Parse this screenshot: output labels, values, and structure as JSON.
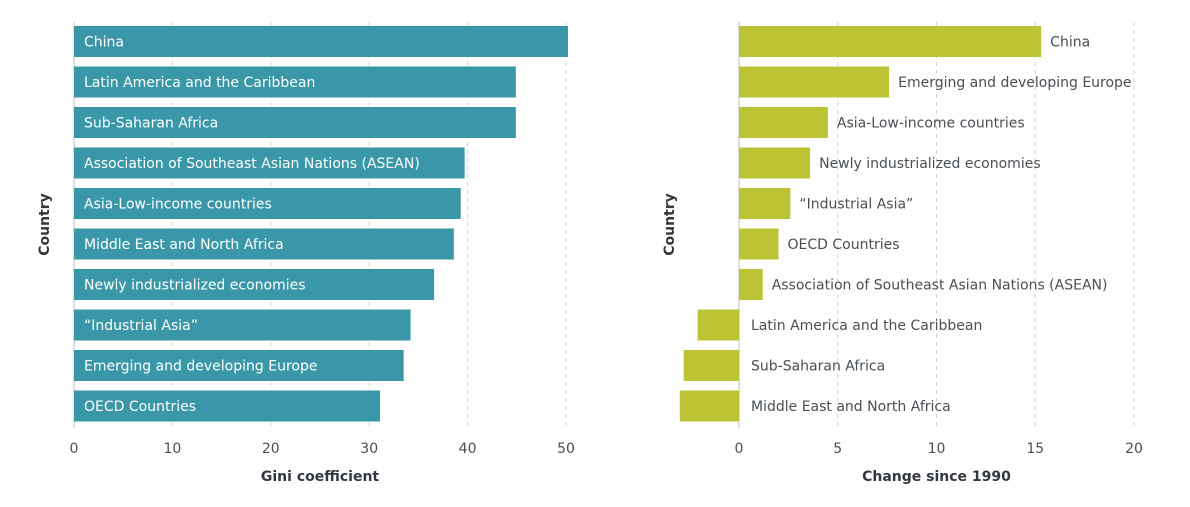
{
  "chart_data": [
    {
      "type": "bar",
      "orientation": "horizontal",
      "categories": [
        "China",
        "Latin America and the Caribbean",
        "Sub-Saharan Africa",
        "Association of Southeast Asian Nations (ASEAN)",
        "Asia-Low-income countries",
        "Middle East and North Africa",
        "Newly industrialized economies",
        "“Industrial Asia”",
        "Emerging and developing Europe",
        "OECD Countries"
      ],
      "values": [
        50.2,
        44.9,
        44.9,
        39.7,
        39.3,
        38.6,
        36.6,
        34.2,
        33.5,
        31.1
      ],
      "xlabel": "Gini coefficient",
      "ylabel": "Country",
      "xlim": [
        0,
        50
      ],
      "xticks": [
        0,
        10,
        20,
        30,
        40,
        50
      ],
      "grid": "vertical dashed",
      "bar_color": "#3a97a8"
    },
    {
      "type": "bar",
      "orientation": "horizontal",
      "categories": [
        "China",
        "Emerging and developing Europe",
        "Asia-Low-income countries",
        "Newly industrialized economies",
        "“Industrial Asia”",
        "OECD Countries",
        "Association of Southeast Asian Nations (ASEAN)",
        "Latin America and the Caribbean",
        "Sub-Saharan Africa",
        "Middle East and North Africa"
      ],
      "values": [
        15.3,
        7.6,
        4.5,
        3.6,
        2.6,
        2.0,
        1.2,
        -2.1,
        -2.8,
        -3.0
      ],
      "xlabel": "Change since 1990",
      "ylabel": "Country",
      "xlim": [
        -3.5,
        20
      ],
      "xticks": [
        0,
        5,
        10,
        15,
        20
      ],
      "grid": "vertical dashed",
      "bar_color": "#bcc435"
    }
  ]
}
